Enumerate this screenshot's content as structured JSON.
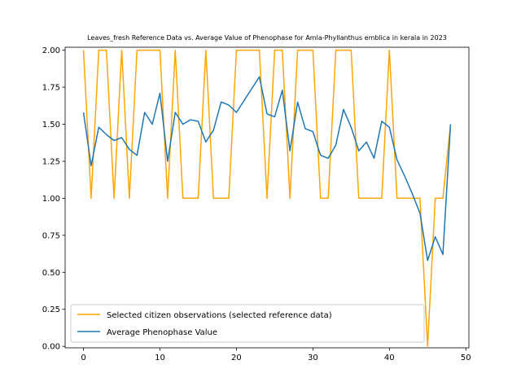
{
  "chart_data": {
    "type": "line",
    "title": "Leaves_fresh Reference Data vs. Average Value of Phenophase for Amla-Phyllanthus emblica in kerala in 2023",
    "xlabel": "",
    "ylabel": "",
    "xlim": [
      -2.4,
      50.4
    ],
    "ylim": [
      -0.01,
      2.02
    ],
    "x_ticks": [
      0,
      10,
      20,
      30,
      40,
      50
    ],
    "y_ticks": [
      0.0,
      0.25,
      0.5,
      0.75,
      1.0,
      1.25,
      1.5,
      1.75,
      2.0
    ],
    "grid": false,
    "legend_position": "lower-left",
    "series": [
      {
        "name": "Selected citizen observations (selected reference data)",
        "color": "#ffa500",
        "x": [
          0,
          1,
          2,
          3,
          4,
          5,
          6,
          7,
          8,
          9,
          10,
          11,
          12,
          13,
          14,
          15,
          16,
          17,
          18,
          19,
          20,
          21,
          22,
          23,
          24,
          25,
          26,
          27,
          28,
          29,
          30,
          31,
          32,
          33,
          34,
          35,
          36,
          37,
          38,
          39,
          40,
          41,
          42,
          43,
          44,
          45,
          46,
          47,
          48
        ],
        "values": [
          2,
          1,
          2,
          2,
          1,
          2,
          1,
          2,
          2,
          2,
          2,
          1,
          2,
          1,
          1,
          1,
          2,
          1,
          1,
          1,
          2,
          2,
          2,
          2,
          1,
          2,
          2,
          1,
          2,
          2,
          2,
          1,
          1,
          2,
          2,
          2,
          1,
          1,
          1,
          1,
          2,
          1,
          1,
          1,
          1,
          0,
          1,
          1,
          1.5
        ]
      },
      {
        "name": "Average Phenophase Value",
        "color": "#1f77b4",
        "x": [
          0,
          1,
          2,
          3,
          4,
          5,
          6,
          7,
          8,
          9,
          10,
          11,
          12,
          13,
          14,
          15,
          16,
          17,
          18,
          19,
          20,
          21,
          22,
          23,
          24,
          25,
          26,
          27,
          28,
          29,
          30,
          31,
          32,
          33,
          34,
          35,
          36,
          37,
          38,
          39,
          40,
          41,
          42,
          43,
          44,
          45,
          46,
          47,
          48
        ],
        "values": [
          1.58,
          1.22,
          1.48,
          1.43,
          1.39,
          1.41,
          1.33,
          1.29,
          1.58,
          1.5,
          1.71,
          1.25,
          1.58,
          1.5,
          1.53,
          1.52,
          1.38,
          1.46,
          1.65,
          1.63,
          1.58,
          1.66,
          1.74,
          1.82,
          1.57,
          1.55,
          1.73,
          1.32,
          1.65,
          1.47,
          1.45,
          1.29,
          1.27,
          1.36,
          1.6,
          1.48,
          1.32,
          1.38,
          1.27,
          1.52,
          1.48,
          1.26,
          1.15,
          1.03,
          0.9,
          0.58,
          0.74,
          0.62,
          1.5
        ]
      }
    ]
  }
}
